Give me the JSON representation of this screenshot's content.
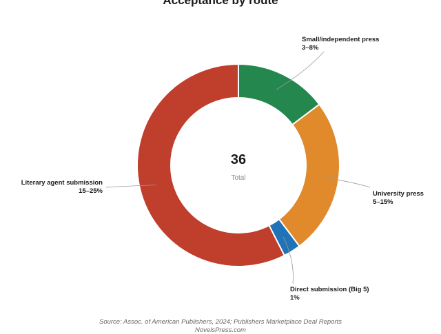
{
  "chart_data": {
    "type": "pie",
    "donut": true,
    "title": "Acceptance by route",
    "center_value": "36",
    "center_label": "Total",
    "slices": [
      {
        "label": "Small/independent press",
        "range_label": "3–8%",
        "value": 5.3,
        "color": "#23874e"
      },
      {
        "label": "University press",
        "range_label": "5–15%",
        "value": 9.0,
        "color": "#e08a2c"
      },
      {
        "label": "Direct submission (Big 5)",
        "range_label": "1%",
        "value": 1.0,
        "color": "#1f73b6"
      },
      {
        "label": "Literary agent submission",
        "range_label": "15–25%",
        "value": 20.7,
        "color": "#bf3e2c"
      }
    ],
    "source": "Source: Assoc. of American Publishers, 2024; Publishers Marketplace Deal Reports",
    "credit": "NovelsPress.com"
  }
}
